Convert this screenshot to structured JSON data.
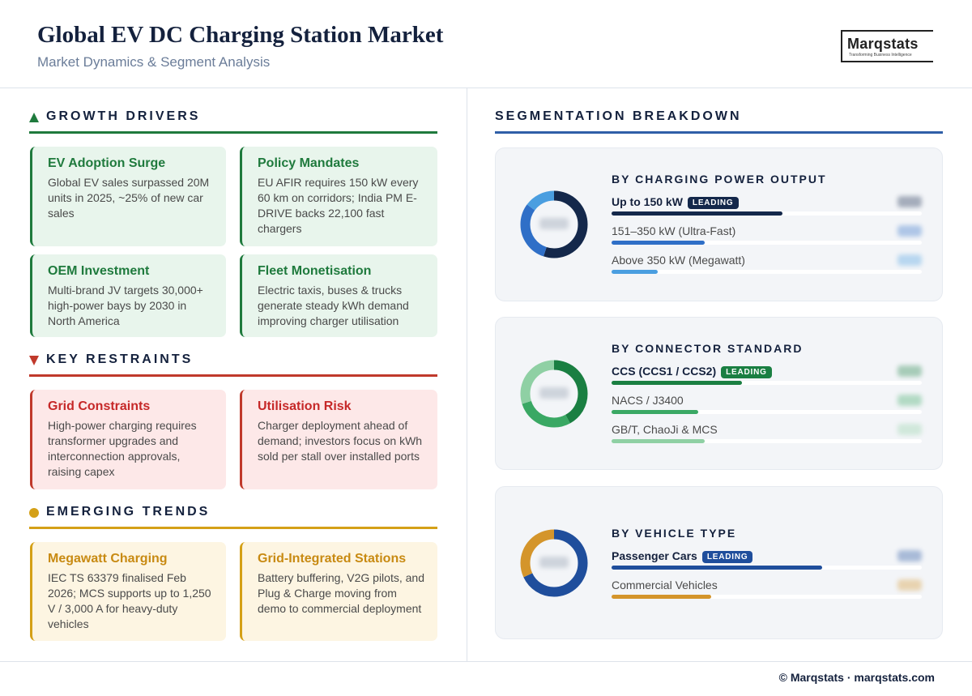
{
  "header": {
    "title": "Global EV DC Charging Station Market",
    "subtitle": "Market Dynamics & Segment Analysis",
    "logo": "Marqstats",
    "logo_tagline": "Transforming Business Intelligence"
  },
  "sections": [
    {
      "title": "GROWTH DRIVERS",
      "color": "#1f7a3d",
      "background": "#e8f5ec",
      "cards": [
        {
          "title": "EV Adoption Surge",
          "text": "Global EV sales surpassed 20M units in 2025, ~25% of new car sales"
        },
        {
          "title": "Policy Mandates",
          "text": "EU AFIR requires 150 kW every 60 km on corridors; India PM E-DRIVE backs 22,100 fast chargers"
        },
        {
          "title": "OEM Investment",
          "text": "Multi-brand JV targets 30,000+ high-power bays by 2030 in North America"
        },
        {
          "title": "Fleet Monetisation",
          "text": "Electric taxis, buses & trucks generate steady kWh demand improving charger utilisation"
        }
      ]
    },
    {
      "title": "KEY RESTRAINTS",
      "color": "#c0392b",
      "background": "#fde8e8",
      "cards": [
        {
          "title": "Grid Constraints",
          "text": "High-power charging requires transformer upgrades and interconnection approvals, raising capex"
        },
        {
          "title": "Utilisation Risk",
          "text": "Charger deployment ahead of demand; investors focus on kWh sold per stall over installed ports"
        }
      ]
    },
    {
      "title": "EMERGING TRENDS",
      "color": "#d4a017",
      "background": "#fdf5e2",
      "cards": [
        {
          "title": "Megawatt Charging",
          "text": "IEC TS 63379 finalised Feb 2026; MCS supports up to 1,250 V / 3,000 A for heavy-duty vehicles"
        },
        {
          "title": "Grid-Integrated Stations",
          "text": "Battery buffering, V2G pilots, and Plug & Charge moving from demo to commercial deployment"
        }
      ]
    }
  ],
  "segmentation": {
    "title": "SEGMENTATION BREAKDOWN",
    "segments": [
      {
        "title": "BY CHARGING POWER OUTPUT",
        "badge": "LEADING",
        "items": [
          {
            "name": "Up to 150 kW",
            "value": 55,
            "color": "#14284b"
          },
          {
            "name": "151–350 kW (Ultra-Fast)",
            "value": 30,
            "color": "#2f6fc7"
          },
          {
            "name": "Above 350 kW (Megawatt)",
            "value": 15,
            "color": "#4a9ee0"
          }
        ]
      },
      {
        "title": "BY CONNECTOR STANDARD",
        "badge": "LEADING",
        "items": [
          {
            "name": "CCS (CCS1 / CCS2)",
            "value": 42,
            "color": "#1a7f42"
          },
          {
            "name": "NACS / J3400",
            "value": 28,
            "color": "#3aa864"
          },
          {
            "name": "GB/T, ChaoJi & MCS",
            "value": 30,
            "color": "#8fd0a4"
          }
        ]
      },
      {
        "title": "BY VEHICLE TYPE",
        "badge": "LEADING",
        "items": [
          {
            "name": "Passenger Cars",
            "value": 68,
            "color": "#1f4e9c"
          },
          {
            "name": "Commercial Vehicles",
            "value": 32,
            "color": "#d4952b"
          }
        ]
      }
    ]
  },
  "footer": "© Marqstats · marqstats.com"
}
